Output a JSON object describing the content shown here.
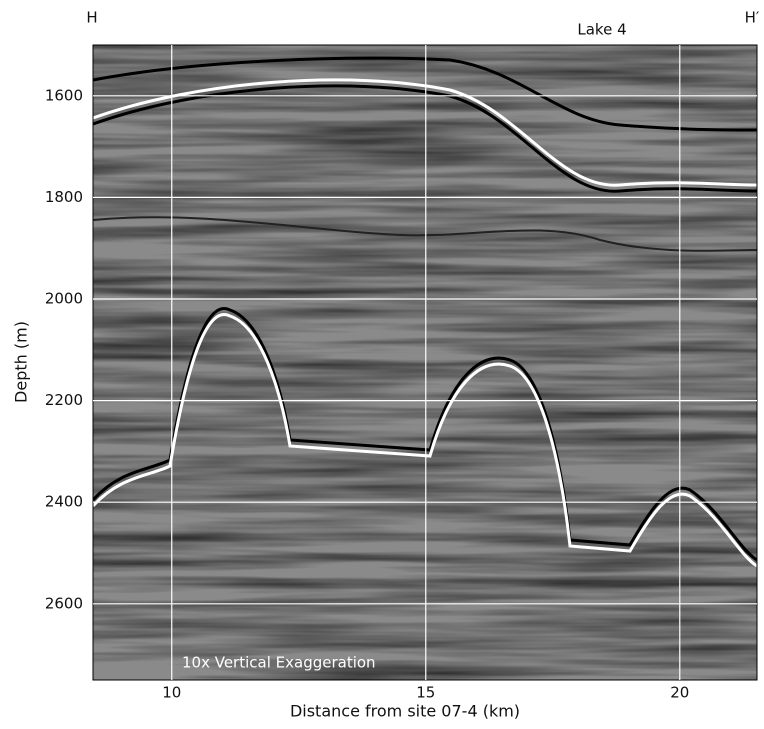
{
  "chart_data": {
    "type": "image",
    "x_label": "Distance from site 07-4 (km)",
    "y_label": "Depth (m)",
    "left_label": "H",
    "right_label": "H′",
    "top_annotation": "Lake 4",
    "bottom_annotation": "10x Vertical Exaggeration",
    "xlim": [
      8.45,
      21.52
    ],
    "xticks": [
      10,
      15,
      20
    ],
    "ylim": [
      1500,
      2750
    ],
    "y_inverted": true,
    "yticks": [
      1600,
      1800,
      2000,
      2200,
      2400,
      2600
    ],
    "grid": true
  }
}
